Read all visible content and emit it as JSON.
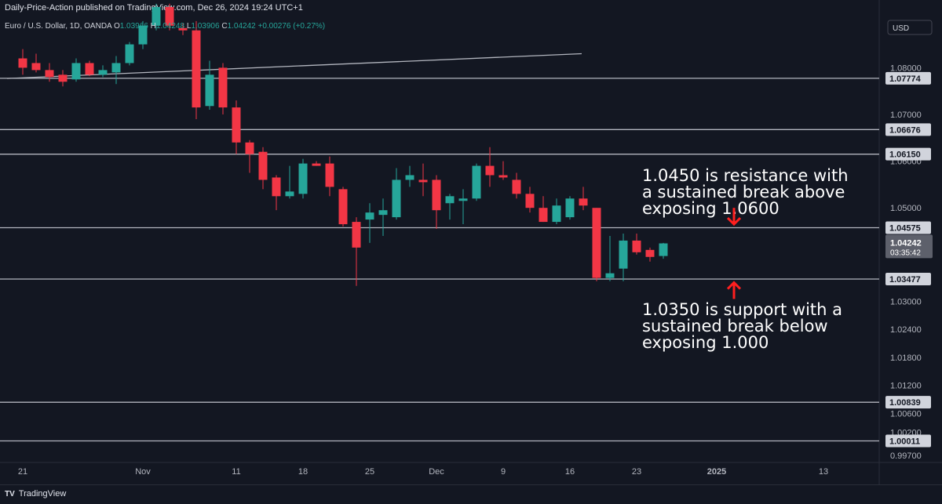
{
  "header": {
    "published": "Daily-Price-Action published on TradingView.com, Dec 26, 2024 19:24 UTC+1",
    "symbol": "Euro / U.S. Dollar, 1D, OANDA",
    "ohlc": [
      {
        "k": "O",
        "v": "1.03966"
      },
      {
        "k": "H",
        "v": "1.04248"
      },
      {
        "k": "L",
        "v": "1.03906"
      },
      {
        "k": "C",
        "v": "1.04242"
      }
    ],
    "change": "+0.00276 (+0.27%)",
    "currency": "USD"
  },
  "footer": {
    "brand": "TradingView",
    "logo": "tradingview-logo-icon"
  },
  "colors": {
    "background": "#131722",
    "bull": "#26a69a",
    "bear": "#f23645",
    "level_line": "#b2b5be",
    "annotation_arrow": "#ff1f1f",
    "current_price_tag": "#5d606b"
  },
  "chart_data": {
    "type": "candlestick",
    "title": "Euro / U.S. Dollar, 1D, OANDA",
    "ylim": [
      0.9955,
      1.0945
    ],
    "y_ticks": [
      "1.08000",
      "1.07000",
      "1.06000",
      "1.05000",
      "1.03000",
      "1.02400",
      "1.01800",
      "1.01200",
      "1.00600",
      "1.00200",
      "0.99700"
    ],
    "x_ticks": [
      {
        "label": "21",
        "bar": 0
      },
      {
        "label": "Nov",
        "bar": 9
      },
      {
        "label": "11",
        "bar": 16
      },
      {
        "label": "18",
        "bar": 21
      },
      {
        "label": "25",
        "bar": 26
      },
      {
        "label": "Dec",
        "bar": 31
      },
      {
        "label": "9",
        "bar": 36
      },
      {
        "label": "16",
        "bar": 41
      },
      {
        "label": "23",
        "bar": 46
      },
      {
        "label": "2025",
        "bar": 52
      },
      {
        "label": "13",
        "bar": 60
      }
    ],
    "bars_visible_right": 64,
    "candles": [
      {
        "o": 1.082,
        "h": 1.084,
        "l": 1.0785,
        "c": 1.08
      },
      {
        "o": 1.081,
        "h": 1.083,
        "l": 1.079,
        "c": 1.0795
      },
      {
        "o": 1.0795,
        "h": 1.081,
        "l": 1.077,
        "c": 1.078
      },
      {
        "o": 1.0785,
        "h": 1.0795,
        "l": 1.076,
        "c": 1.077
      },
      {
        "o": 1.0775,
        "h": 1.082,
        "l": 1.077,
        "c": 1.081
      },
      {
        "o": 1.081,
        "h": 1.0815,
        "l": 1.0782,
        "c": 1.0785
      },
      {
        "o": 1.0785,
        "h": 1.0805,
        "l": 1.078,
        "c": 1.0795
      },
      {
        "o": 1.079,
        "h": 1.0825,
        "l": 1.0765,
        "c": 1.081
      },
      {
        "o": 1.081,
        "h": 1.0855,
        "l": 1.0805,
        "c": 1.085
      },
      {
        "o": 1.085,
        "h": 1.09,
        "l": 1.084,
        "c": 1.089
      },
      {
        "o": 1.089,
        "h": 1.0937,
        "l": 1.088,
        "c": 1.093
      },
      {
        "o": 1.093,
        "h": 1.0937,
        "l": 1.088,
        "c": 1.089
      },
      {
        "o": 1.0885,
        "h": 1.0895,
        "l": 1.087,
        "c": 1.088
      },
      {
        "o": 1.088,
        "h": 1.09,
        "l": 1.069,
        "c": 1.0715
      },
      {
        "o": 1.0718,
        "h": 1.0815,
        "l": 1.071,
        "c": 1.0785
      },
      {
        "o": 1.08,
        "h": 1.081,
        "l": 1.07,
        "c": 1.0715
      },
      {
        "o": 1.0715,
        "h": 1.073,
        "l": 1.0615,
        "c": 1.064
      },
      {
        "o": 1.064,
        "h": 1.0645,
        "l": 1.0575,
        "c": 1.0615
      },
      {
        "o": 1.062,
        "h": 1.063,
        "l": 1.054,
        "c": 1.056
      },
      {
        "o": 1.0565,
        "h": 1.057,
        "l": 1.0495,
        "c": 1.0525
      },
      {
        "o": 1.0525,
        "h": 1.059,
        "l": 1.052,
        "c": 1.0535
      },
      {
        "o": 1.053,
        "h": 1.0605,
        "l": 1.052,
        "c": 1.0595
      },
      {
        "o": 1.0595,
        "h": 1.06,
        "l": 1.059,
        "c": 1.059
      },
      {
        "o": 1.0595,
        "h": 1.061,
        "l": 1.0525,
        "c": 1.0545
      },
      {
        "o": 1.054,
        "h": 1.0545,
        "l": 1.046,
        "c": 1.0465
      },
      {
        "o": 1.047,
        "h": 1.048,
        "l": 1.0333,
        "c": 1.0415
      },
      {
        "o": 1.0475,
        "h": 1.051,
        "l": 1.0425,
        "c": 1.049
      },
      {
        "o": 1.0485,
        "h": 1.052,
        "l": 1.044,
        "c": 1.0495
      },
      {
        "o": 1.048,
        "h": 1.0585,
        "l": 1.0475,
        "c": 1.056
      },
      {
        "o": 1.056,
        "h": 1.059,
        "l": 1.0545,
        "c": 1.057
      },
      {
        "o": 1.056,
        "h": 1.0595,
        "l": 1.0525,
        "c": 1.0555
      },
      {
        "o": 1.056,
        "h": 1.057,
        "l": 1.0455,
        "c": 1.0495
      },
      {
        "o": 1.051,
        "h": 1.053,
        "l": 1.0475,
        "c": 1.0525
      },
      {
        "o": 1.0515,
        "h": 1.054,
        "l": 1.0465,
        "c": 1.052
      },
      {
        "o": 1.052,
        "h": 1.0595,
        "l": 1.0515,
        "c": 1.059
      },
      {
        "o": 1.059,
        "h": 1.063,
        "l": 1.0545,
        "c": 1.057
      },
      {
        "o": 1.057,
        "h": 1.06,
        "l": 1.056,
        "c": 1.0565
      },
      {
        "o": 1.056,
        "h": 1.0575,
        "l": 1.052,
        "c": 1.053
      },
      {
        "o": 1.053,
        "h": 1.0545,
        "l": 1.049,
        "c": 1.05
      },
      {
        "o": 1.05,
        "h": 1.0525,
        "l": 1.047,
        "c": 1.047
      },
      {
        "o": 1.047,
        "h": 1.052,
        "l": 1.0465,
        "c": 1.0505
      },
      {
        "o": 1.048,
        "h": 1.0525,
        "l": 1.0475,
        "c": 1.052
      },
      {
        "o": 1.052,
        "h": 1.0545,
        "l": 1.0495,
        "c": 1.0505
      },
      {
        "o": 1.05,
        "h": 1.05,
        "l": 1.0343,
        "c": 1.035
      },
      {
        "o": 1.035,
        "h": 1.044,
        "l": 1.0343,
        "c": 1.036
      },
      {
        "o": 1.037,
        "h": 1.0445,
        "l": 1.0343,
        "c": 1.043
      },
      {
        "o": 1.043,
        "h": 1.0445,
        "l": 1.04,
        "c": 1.0405
      },
      {
        "o": 1.041,
        "h": 1.0415,
        "l": 1.0385,
        "c": 1.0395
      },
      {
        "o": 1.0397,
        "h": 1.0425,
        "l": 1.0391,
        "c": 1.0424
      }
    ],
    "levels": [
      {
        "price": 1.07774,
        "label": "1.07774"
      },
      {
        "price": 1.06676,
        "label": "1.06676"
      },
      {
        "price": 1.0615,
        "label": "1.06150"
      },
      {
        "price": 1.04575,
        "label": "1.04575"
      },
      {
        "price": 1.03477,
        "label": "1.03477"
      },
      {
        "price": 1.00839,
        "label": "1.00839"
      },
      {
        "price": 1.00011,
        "label": "1.00011"
      }
    ],
    "trendline": {
      "from": {
        "bar": 0,
        "price": 1.0777
      },
      "to": {
        "bar": 41,
        "price": 1.083
      }
    },
    "current_price": {
      "label": "1.04242",
      "countdown": "03:35:42",
      "price": 1.04242
    },
    "annotations": [
      {
        "lines": [
          "1.0450 is resistance with",
          "a sustained break above",
          "exposing 1.0600"
        ],
        "top_price": 1.0588,
        "arrow": "down",
        "arrow_bar": 50,
        "arrow_from": 1.05,
        "arrow_to": 1.0465
      },
      {
        "lines": [
          "1.0350 is support with a",
          "sustained break below",
          "exposing 1.000"
        ],
        "top_price": 1.0301,
        "arrow": "up",
        "arrow_bar": 50,
        "arrow_from": 1.0305,
        "arrow_to": 1.034
      }
    ]
  }
}
